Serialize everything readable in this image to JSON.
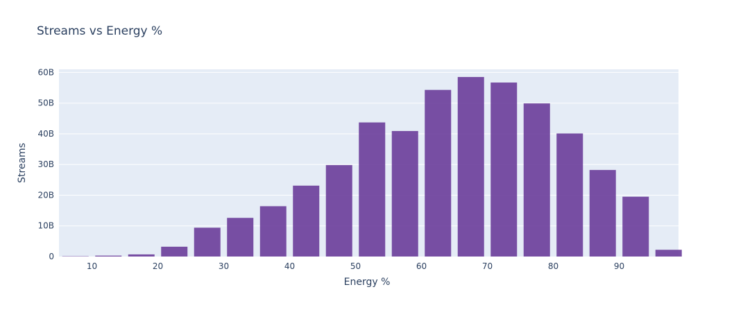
{
  "chart_data": {
    "type": "bar",
    "title": "Streams vs Energy %",
    "xlabel": "Energy %",
    "ylabel": "Streams",
    "x": [
      7.5,
      12.5,
      17.5,
      22.5,
      27.5,
      32.5,
      37.5,
      42.5,
      47.5,
      52.5,
      57.5,
      62.5,
      67.5,
      72.5,
      77.5,
      82.5,
      87.5,
      92.5,
      97.5
    ],
    "values": [
      0.1,
      0.3,
      0.7,
      3.2,
      9.4,
      12.6,
      16.4,
      23.1,
      29.8,
      43.7,
      40.9,
      54.3,
      58.5,
      56.7,
      49.9,
      40.1,
      28.2,
      19.5,
      2.2
    ],
    "value_unit": "B",
    "bar_width": 4,
    "xlim": [
      5,
      99
    ],
    "ylim": [
      0,
      61
    ],
    "x_ticks": [
      10,
      20,
      30,
      40,
      50,
      60,
      70,
      80,
      90
    ],
    "y_ticks": [
      0,
      10,
      20,
      30,
      40,
      50,
      60
    ],
    "y_tick_labels": [
      "0",
      "10B",
      "20B",
      "30B",
      "40B",
      "50B",
      "60B"
    ],
    "grid": true,
    "colors": {
      "bar": "#6a3d9a",
      "plot_bg": "#e5ecf6",
      "grid": "#ffffff",
      "text": "#2a3f5f"
    }
  }
}
